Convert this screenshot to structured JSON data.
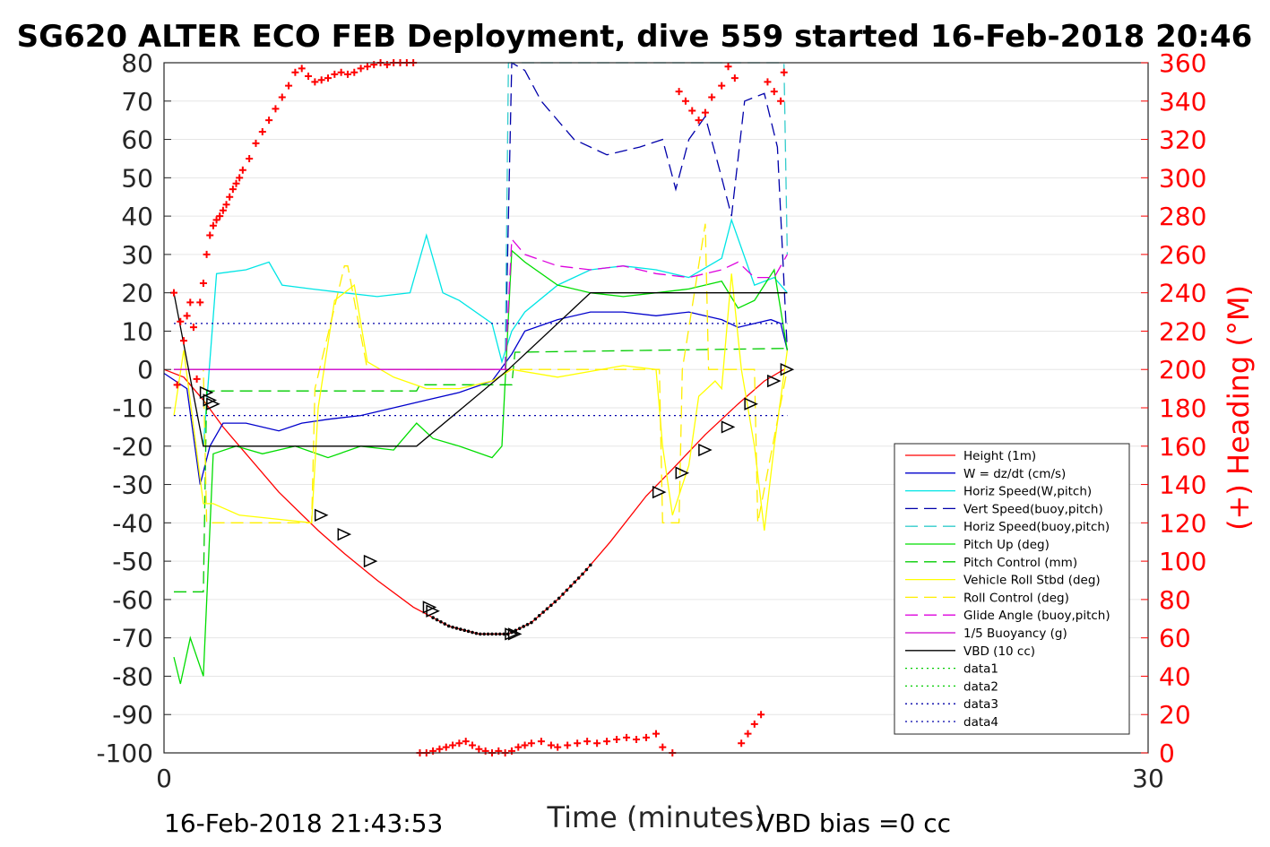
{
  "chart_data": {
    "type": "line",
    "title": "SG620 ALTER ECO FEB Deployment, dive 559 started 16-Feb-2018 20:46",
    "xlabel": "Time (minutes)",
    "ylabel_right": "(+) Heading (°M)",
    "xlim": [
      0,
      30
    ],
    "ylim": [
      -100,
      80
    ],
    "ylim_right": [
      0,
      360
    ],
    "grid": true,
    "legend_position": "right",
    "x_ticks": [
      "0",
      "30"
    ],
    "y_ticks": [
      "80",
      "70",
      "60",
      "50",
      "40",
      "30",
      "20",
      "10",
      "0",
      "-10",
      "-20",
      "-30",
      "-40",
      "-50",
      "-60",
      "-70",
      "-80",
      "-90",
      "-100"
    ],
    "y_right_ticks": [
      "360",
      "340",
      "320",
      "300",
      "280",
      "260",
      "240",
      "220",
      "200",
      "180",
      "160",
      "140",
      "120",
      "100",
      "80",
      "60",
      "40",
      "20",
      "0"
    ],
    "footer_left": "16-Feb-2018 21:43:53",
    "footer_right": "VBD bias =0 cc",
    "series": [
      {
        "name": "Height (1m)",
        "color": "#ff0000",
        "style": "solid",
        "x": [
          0,
          0.6,
          1.2,
          1.8,
          2.5,
          3.5,
          4.7,
          5.5,
          6.5,
          7.6,
          8.7,
          9.6,
          10.5,
          11.2,
          12,
          12.8,
          13.6,
          14.7,
          15.5,
          16.5,
          17.5,
          18.3,
          18.9
        ],
        "y": [
          0,
          -2,
          -8,
          -15,
          -22,
          -32,
          -42,
          -48,
          -55,
          -62,
          -67,
          -69,
          -69,
          -66,
          -60,
          -53,
          -45,
          -33,
          -26,
          -17,
          -9,
          -3,
          0
        ]
      },
      {
        "name": "W = dz/dt (cm/s)",
        "color": "#0000cc",
        "style": "solid",
        "x": [
          0,
          0.7,
          1.1,
          1.4,
          1.8,
          2.5,
          3.5,
          4.2,
          5,
          6,
          7,
          8,
          9,
          10,
          10.6,
          11,
          12,
          13,
          14,
          15,
          16,
          17,
          17.5,
          18,
          18.5,
          18.8,
          19
        ],
        "y": [
          -1,
          -5,
          -30,
          -20,
          -14,
          -14,
          -16,
          -14,
          -13,
          -12,
          -10,
          -8,
          -6,
          -3,
          4,
          10,
          13,
          15,
          15,
          14,
          15,
          13,
          11,
          12,
          13,
          12,
          5
        ]
      },
      {
        "name": "Horiz Speed(W,pitch)",
        "color": "#00e5e5",
        "style": "solid",
        "x": [
          1.2,
          1.6,
          2.5,
          3.2,
          3.6,
          4.5,
          5.5,
          6.5,
          7.5,
          8,
          8.5,
          9,
          10,
          10.3,
          10.6,
          11,
          12,
          13,
          14,
          15,
          16,
          17,
          17.3,
          18,
          18.6,
          19
        ],
        "y": [
          -20,
          25,
          26,
          28,
          22,
          21,
          20,
          19,
          20,
          35,
          20,
          18,
          12,
          2,
          10,
          15,
          22,
          26,
          27,
          26,
          24,
          29,
          39,
          22,
          24,
          20
        ]
      },
      {
        "name": "Vert Speed(buoy,pitch)",
        "color": "#0000aa",
        "style": "dash",
        "x": [
          10.4,
          10.6,
          11,
          11.5,
          12.5,
          13.5,
          14.5,
          15.2,
          15.6,
          16,
          16.5,
          17,
          17.3,
          17.7,
          18.3,
          18.7,
          19
        ],
        "y": [
          0,
          80,
          78,
          70,
          60,
          56,
          58,
          60,
          47,
          60,
          66,
          50,
          40,
          70,
          72,
          58,
          5
        ]
      },
      {
        "name": "Horiz Speed(buoy,pitch)",
        "color": "#33cccc",
        "style": "dash",
        "x": [
          10.4,
          10.5,
          10.6,
          10.7,
          18.8,
          18.9,
          19
        ],
        "y": [
          0,
          80,
          80,
          80,
          80,
          80,
          30
        ]
      },
      {
        "name": "Pitch Up (deg)",
        "color": "#00dd00",
        "style": "solid",
        "x": [
          0.3,
          0.5,
          0.8,
          1.2,
          1.5,
          2.2,
          3,
          4,
          5,
          6,
          7,
          7.7,
          8.2,
          9,
          10,
          10.3,
          10.6,
          11,
          12,
          13,
          14,
          15,
          16,
          17,
          17.5,
          18,
          18.6,
          19
        ],
        "y": [
          -75,
          -82,
          -70,
          -80,
          -22,
          -20,
          -22,
          -20,
          -23,
          -20,
          -21,
          -14,
          -18,
          -20,
          -23,
          -20,
          31,
          28,
          22,
          20,
          19,
          20,
          21,
          23,
          16,
          18,
          26,
          5
        ]
      },
      {
        "name": "Pitch Control (mm)",
        "color": "#00cc00",
        "style": "dash",
        "x": [
          0.3,
          1.2,
          1.3,
          7.7,
          7.8,
          10.6,
          10.7,
          19
        ],
        "y": [
          -58,
          -58,
          -5.6,
          -5.6,
          -4,
          -4,
          4.5,
          5.5
        ]
      },
      {
        "name": "Vehicle Roll Stbd (deg)",
        "color": "#ffff00",
        "style": "solid",
        "x": [
          0.3,
          0.6,
          1.2,
          1.5,
          2.3,
          4.5,
          4.7,
          5.2,
          5.8,
          6.2,
          7,
          8,
          9,
          10,
          10.6,
          12,
          14,
          15,
          15.2,
          15.5,
          16,
          16.3,
          16.8,
          17,
          17.3,
          17.6,
          18,
          18.3,
          18.6,
          19
        ],
        "y": [
          -12,
          5,
          -35,
          -35,
          -38,
          -40,
          -10,
          18,
          22,
          2,
          -2,
          -5,
          -5,
          -3,
          0,
          -2,
          1,
          0,
          -20,
          -38,
          -25,
          -7,
          -3,
          -5,
          25,
          0,
          -20,
          -42,
          -20,
          5
        ]
      },
      {
        "name": "Roll Control (deg)",
        "color": "#ffee00",
        "style": "dash",
        "x": [
          0.3,
          1.2,
          1.3,
          4.5,
          4.6,
          5.5,
          5.6,
          6.2,
          6.3,
          10.6,
          10.7,
          15.1,
          15.2,
          15.7,
          15.8,
          16.5,
          16.6,
          18,
          18.1,
          19
        ],
        "y": [
          0,
          0,
          -40,
          -40,
          -5,
          27,
          27,
          0,
          0,
          0,
          0,
          0,
          -40,
          -40,
          0,
          38,
          0,
          0,
          -40,
          0
        ]
      },
      {
        "name": "Glide Angle (buoy,pitch)",
        "color": "#dd00dd",
        "style": "dash",
        "x": [
          10.4,
          10.6,
          11,
          12,
          13,
          14,
          15,
          16,
          17,
          17.5,
          18,
          18.6,
          19
        ],
        "y": [
          0,
          34,
          30,
          27,
          26,
          27,
          25,
          24,
          26,
          28,
          24,
          24,
          30
        ]
      },
      {
        "name": "1/5 Buoyancy (g)",
        "color": "#cc00cc",
        "style": "solid",
        "x": [
          0.3,
          10.5
        ],
        "y": [
          0,
          0
        ]
      },
      {
        "name": "VBD (10 cc)",
        "color": "#000000",
        "style": "solid",
        "x": [
          0.3,
          1.2,
          7.7,
          10.5,
          13,
          19
        ],
        "y": [
          20,
          -20,
          -20,
          0,
          20,
          20
        ]
      },
      {
        "name": "data1",
        "color": "#00cc00",
        "style": "dot",
        "x": [],
        "y": []
      },
      {
        "name": "data2",
        "color": "#00cc00",
        "style": "dot",
        "x": [],
        "y": []
      },
      {
        "name": "data3",
        "color": "#0000aa",
        "style": "dot",
        "x": [
          0.3,
          19
        ],
        "y": [
          12,
          12
        ]
      },
      {
        "name": "data4",
        "color": "#0000aa",
        "style": "dot",
        "x": [
          0.3,
          19
        ],
        "y": [
          -12,
          -12
        ]
      }
    ],
    "heading_series": {
      "color": "#ff0000",
      "marker": "+",
      "axis": "right",
      "x": [
        0.3,
        0.4,
        0.5,
        0.6,
        0.7,
        0.8,
        0.9,
        1.0,
        1.1,
        1.2,
        1.3,
        1.4,
        1.5,
        1.6,
        1.7,
        1.8,
        1.9,
        2.0,
        2.1,
        2.2,
        2.3,
        2.4,
        2.6,
        2.8,
        3.0,
        3.2,
        3.4,
        3.6,
        3.8,
        4.0,
        4.2,
        4.4,
        4.6,
        4.8,
        5.0,
        5.2,
        5.4,
        5.6,
        5.8,
        6.0,
        6.2,
        6.4,
        6.6,
        6.8,
        7.0,
        7.2,
        7.4,
        7.6,
        7.8,
        8.0,
        8.2,
        8.4,
        8.6,
        8.8,
        9.0,
        9.2,
        9.4,
        9.6,
        9.8,
        10.0,
        10.2,
        10.4,
        10.6,
        10.8,
        11.0,
        11.2,
        11.5,
        11.8,
        12.0,
        12.3,
        12.6,
        12.9,
        13.2,
        13.5,
        13.8,
        14.1,
        14.4,
        14.7,
        15.0,
        15.2,
        15.5,
        15.7,
        15.9,
        16.1,
        16.3,
        16.5,
        16.7,
        17.0,
        17.2,
        17.4,
        17.6,
        17.8,
        18.0,
        18.2,
        18.4,
        18.6,
        18.8,
        18.9
      ],
      "y": [
        240,
        192,
        225,
        215,
        228,
        235,
        222,
        195,
        235,
        245,
        260,
        270,
        275,
        278,
        280,
        283,
        286,
        290,
        294,
        297,
        300,
        304,
        310,
        318,
        324,
        330,
        336,
        342,
        348,
        355,
        357,
        353,
        350,
        351,
        352,
        354,
        355,
        354,
        355,
        357,
        358,
        359,
        360,
        359,
        360,
        362,
        360,
        361,
        0,
        0,
        1,
        2,
        3,
        4,
        5,
        6,
        4,
        2,
        1,
        0,
        1,
        0,
        1,
        3,
        4,
        5,
        6,
        4,
        3,
        4,
        5,
        6,
        5,
        6,
        7,
        8,
        7,
        8,
        10,
        3,
        0,
        345,
        340,
        335,
        330,
        334,
        342,
        348,
        358,
        352,
        5,
        10,
        15,
        20,
        350,
        345,
        340,
        355
      ]
    },
    "markers": {
      "shape": "triangle",
      "x": [
        1.3,
        1.4,
        1.5,
        4.8,
        5.5,
        6.3,
        8.1,
        8.2,
        10.6,
        10.7,
        15.1,
        15.8,
        16.5,
        17.2,
        17.9,
        18.6,
        19
      ],
      "y": [
        -6,
        -8,
        -9,
        -38,
        -43,
        -50,
        -62,
        -63,
        -69,
        -69,
        -32,
        -27,
        -21,
        -15,
        -9,
        -3,
        0
      ]
    },
    "dense_markers": {
      "x_start": 8.2,
      "x_end": 13.0,
      "note": "dense dot markers along Height curve"
    }
  }
}
